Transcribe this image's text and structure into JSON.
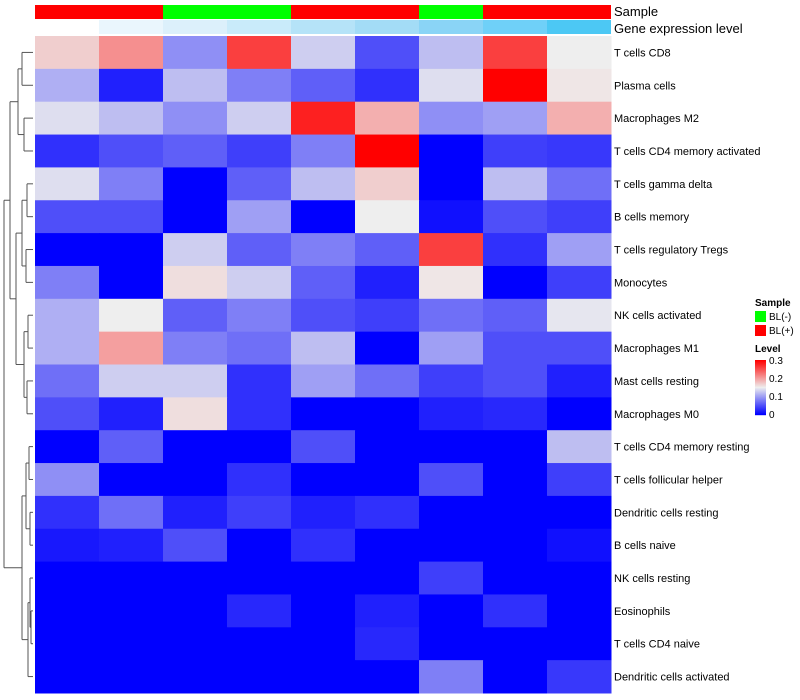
{
  "chart_data": {
    "type": "heatmap",
    "annotations": [
      {
        "name": "Sample",
        "values": [
          "BL(+)",
          "BL(+)",
          "BL(-)",
          "BL(-)",
          "BL(+)",
          "BL(+)",
          "BL(-)",
          "BL(+)",
          "BL(+)"
        ]
      },
      {
        "name": "Gene expression level",
        "colors": [
          "#ffffff",
          "#eaf6fd",
          "#dcf0fb",
          "#c9ebfa",
          "#b5e3f8",
          "#a3dcf6",
          "#8ad4f6",
          "#6fd0f8",
          "#4cc8f4"
        ]
      }
    ],
    "rows": [
      "T cells CD8",
      "Plasma cells",
      "Macrophages M2",
      "T cells CD4 memory activated",
      "T cells gamma delta",
      "B cells memory",
      "T cells regulatory  Tregs",
      "Monocytes",
      "NK cells activated",
      "Macrophages M1",
      "Mast cells resting",
      "Macrophages M0",
      "T cells CD4 memory resting",
      "T cells follicular helper",
      "Dendritic cells resting",
      "B cells naive",
      "NK cells resting",
      "Eosinophils",
      "T cells CD4 naive",
      "Dendritic cells activated"
    ],
    "values": [
      [
        0.17,
        0.21,
        0.09,
        0.26,
        0.13,
        0.05,
        0.12,
        0.26,
        0.15
      ],
      [
        0.11,
        0.02,
        0.12,
        0.08,
        0.06,
        0.03,
        0.14,
        0.3,
        0.155
      ],
      [
        0.14,
        0.12,
        0.09,
        0.13,
        0.28,
        0.19,
        0.09,
        0.1,
        0.19
      ],
      [
        0.03,
        0.05,
        0.06,
        0.04,
        0.08,
        0.3,
        0,
        0.04,
        0.035
      ],
      [
        0.14,
        0.08,
        0,
        0.06,
        0.12,
        0.17,
        0,
        0.12,
        0.07
      ],
      [
        0.05,
        0.05,
        0,
        0.1,
        0,
        0.15,
        0.01,
        0.05,
        0.04
      ],
      [
        0,
        0,
        0.13,
        0.06,
        0.08,
        0.06,
        0.26,
        0.03,
        0.1
      ],
      [
        0.08,
        0,
        0.16,
        0.13,
        0.06,
        0.02,
        0.155,
        0,
        0.04
      ],
      [
        0.11,
        0.15,
        0.06,
        0.08,
        0.05,
        0.04,
        0.07,
        0.06,
        0.145
      ],
      [
        0.11,
        0.2,
        0.08,
        0.07,
        0.12,
        0,
        0.1,
        0.05,
        0.05
      ],
      [
        0.07,
        0.13,
        0.13,
        0.03,
        0.1,
        0.07,
        0.04,
        0.05,
        0.02
      ],
      [
        0.05,
        0.02,
        0.16,
        0.03,
        0,
        0,
        0.02,
        0.025,
        0
      ],
      [
        0,
        0.06,
        0,
        0,
        0.05,
        0,
        0,
        0,
        0.12
      ],
      [
        0.09,
        0,
        0,
        0.03,
        0,
        0,
        0.05,
        0,
        0.04
      ],
      [
        0.03,
        0.07,
        0.02,
        0.04,
        0.02,
        0.03,
        0,
        0,
        0
      ],
      [
        0.015,
        0.02,
        0.05,
        0,
        0.03,
        0,
        0,
        0,
        0.01
      ],
      [
        0,
        0,
        0,
        0,
        0,
        0,
        0.04,
        0,
        0
      ],
      [
        0,
        0,
        0,
        0.025,
        0,
        0.02,
        0,
        0.03,
        0
      ],
      [
        0,
        0,
        0,
        0,
        0,
        0.025,
        0,
        0,
        0
      ],
      [
        0,
        0,
        0,
        0,
        0,
        0,
        0.08,
        0,
        0.035
      ]
    ],
    "scale": {
      "min": 0,
      "max": 0.3,
      "colors": [
        "#0000ff",
        "#eeeeee",
        "#ff0000"
      ]
    },
    "legend": {
      "sample_title": "Sample",
      "sample_entries": [
        {
          "label": "BL(-)",
          "color": "#00ff00"
        },
        {
          "label": "BL(+)",
          "color": "#ff0000"
        }
      ],
      "level_title": "Level",
      "level_ticks": [
        "0.3",
        "0.2",
        "0.1",
        "0"
      ],
      "placement": "right"
    }
  }
}
